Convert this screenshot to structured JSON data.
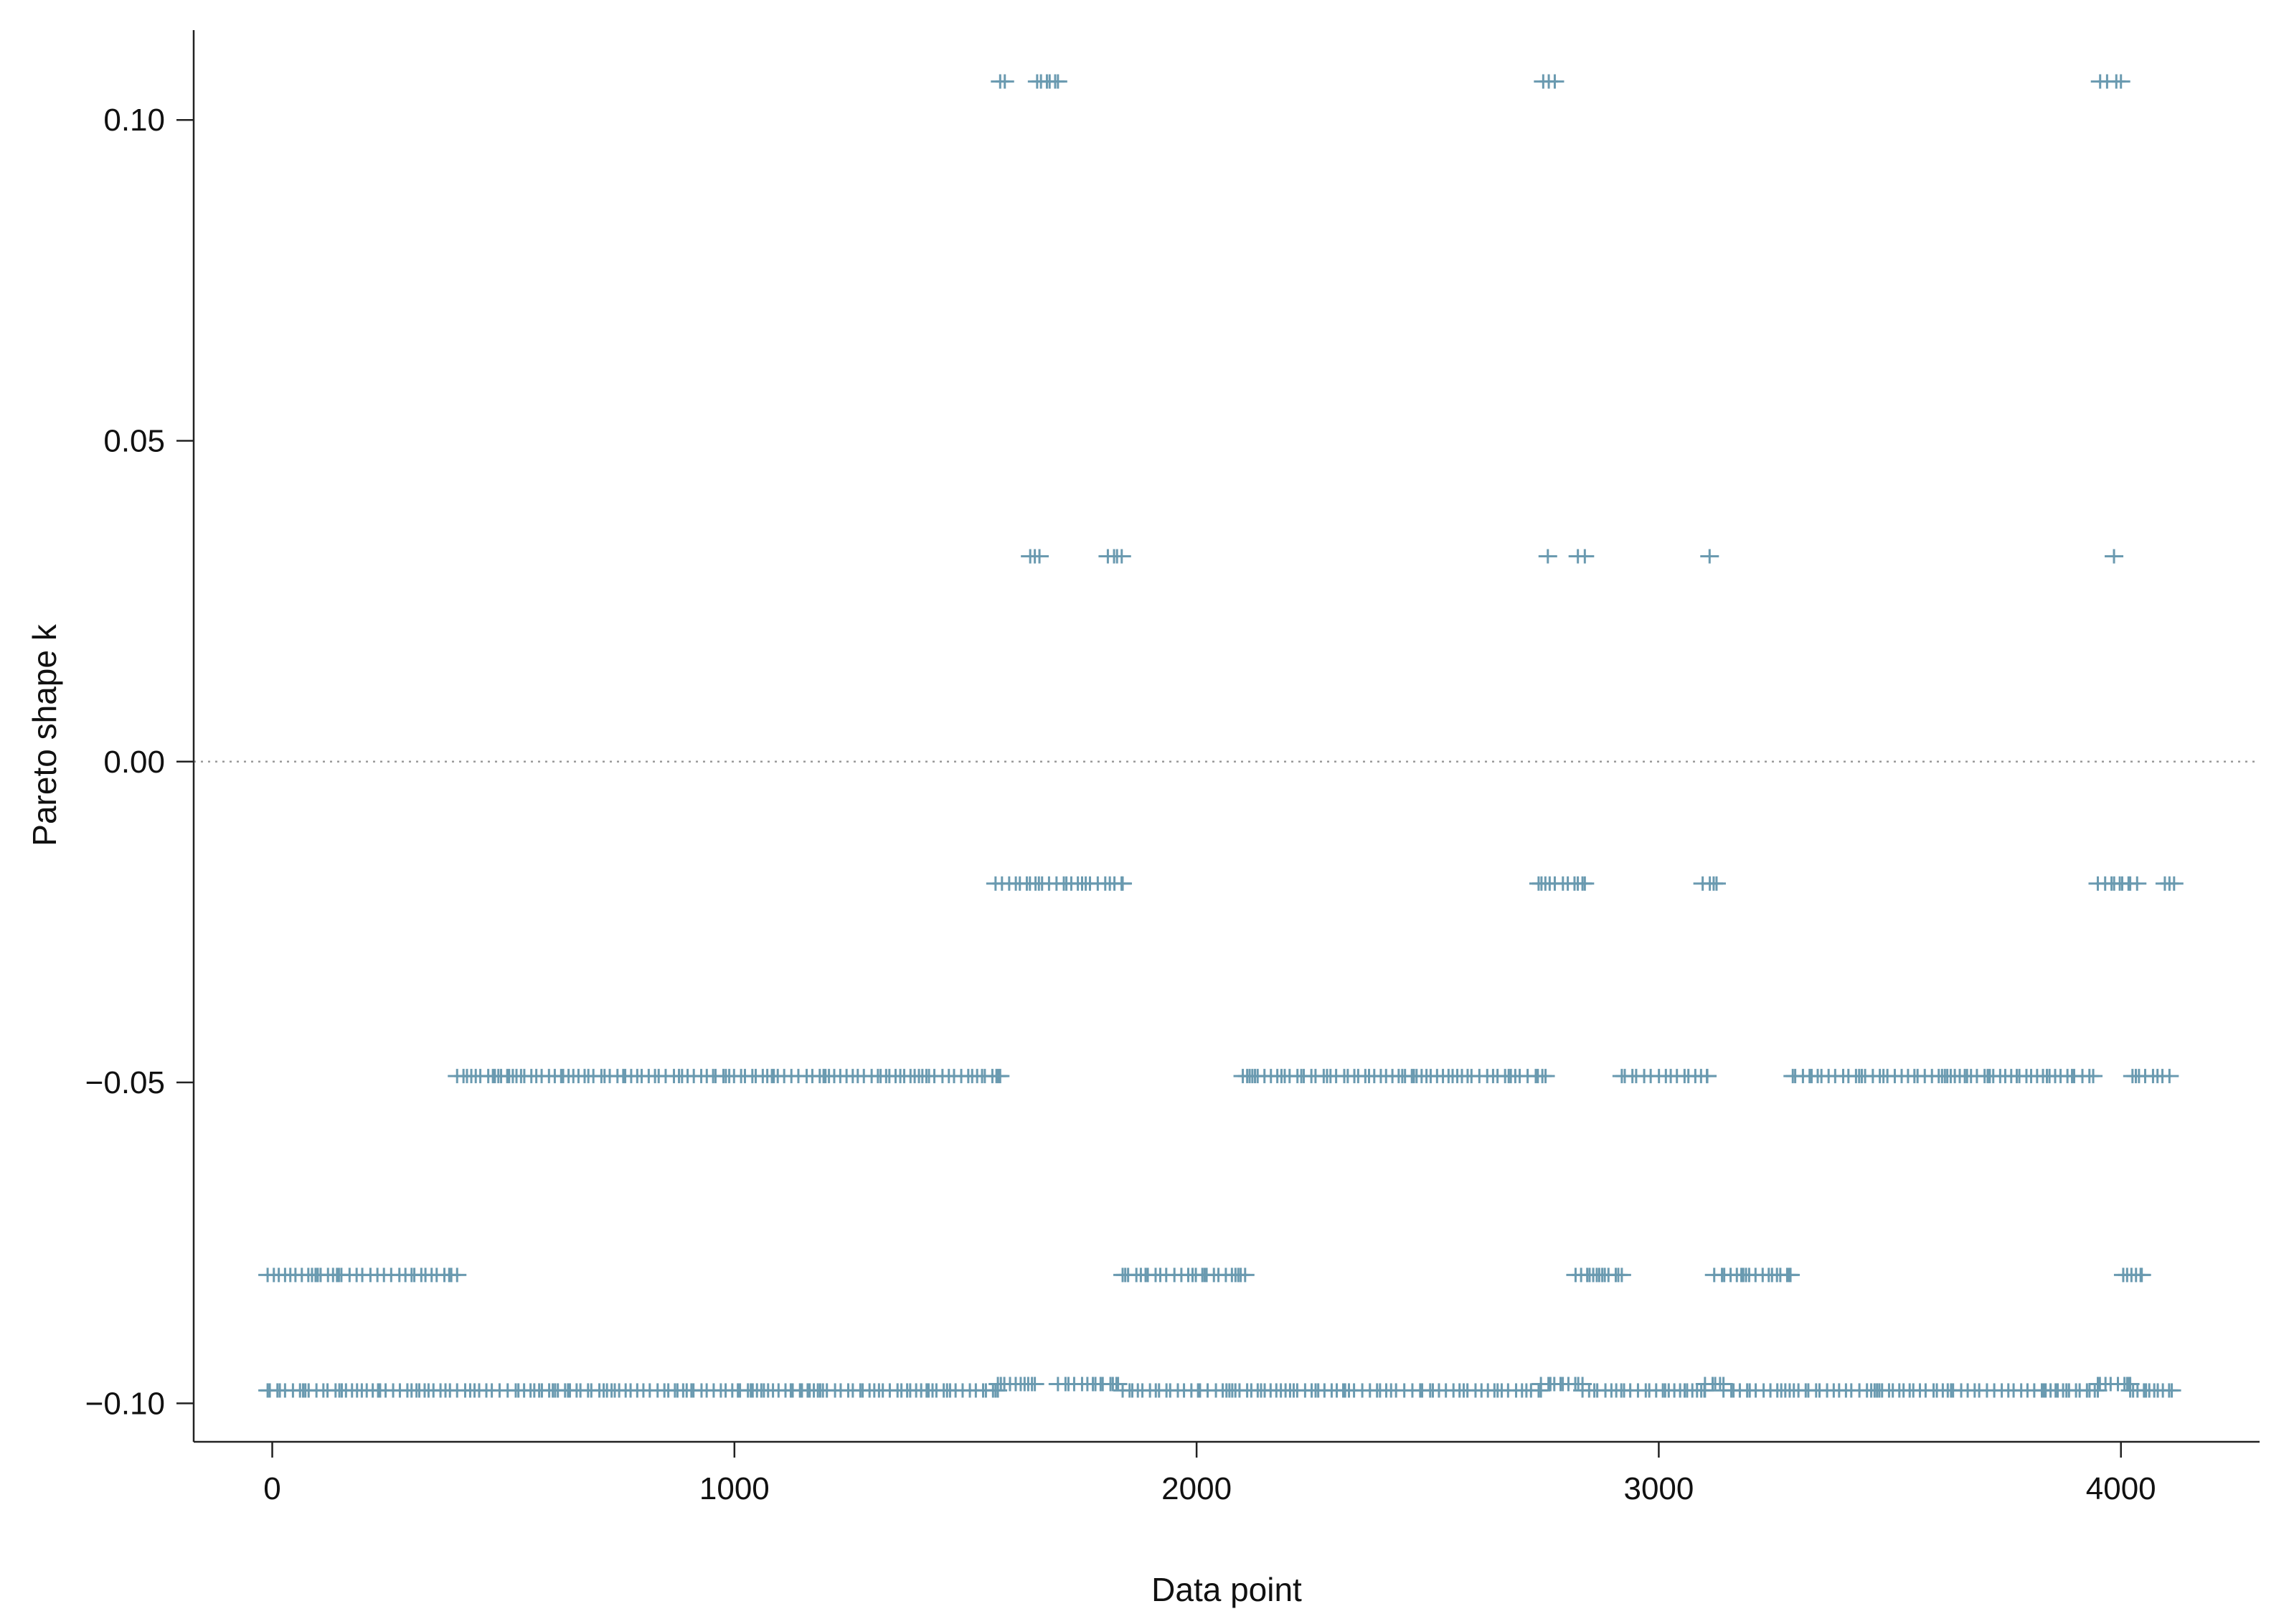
{
  "chart_data": {
    "type": "scatter",
    "title": "",
    "xlabel": "Data point",
    "ylabel": "Pareto shape k",
    "xlim": [
      -170,
      4300
    ],
    "ylim": [
      -0.106,
      0.114
    ],
    "x_ticks": [
      0,
      1000,
      2000,
      3000,
      4000
    ],
    "y_ticks": [
      0.1,
      0.05,
      0.0,
      -0.05,
      -0.1
    ],
    "x_tick_labels": [
      "0",
      "1000",
      "2000",
      "3000",
      "4000"
    ],
    "y_tick_labels": [
      "0.10",
      "0.05",
      "0.00",
      "−0.05",
      "−0.10"
    ],
    "grid": false,
    "reference_line": {
      "y": 0.0,
      "style": "dotted"
    },
    "marker": "plus",
    "color": "#6a9ab0",
    "series": [
      {
        "y": 0.106,
        "x_ranges": [
          [
            1575,
            1585
          ],
          [
            1655,
            1700
          ]
        ],
        "x_points": [
          1682,
          2750,
          2762,
          2775,
          3955,
          3970,
          3990,
          4000
        ]
      },
      {
        "y": 0.032,
        "x_ranges": [
          [
            1808,
            1838
          ]
        ],
        "x_points": [
          1640,
          1650,
          1660,
          2760,
          2825,
          2840,
          3110,
          3985
        ]
      },
      {
        "y": -0.019,
        "x_ranges": [
          [
            1565,
            1840
          ],
          [
            2740,
            2840
          ],
          [
            3095,
            3125
          ],
          [
            3950,
            4020
          ]
        ],
        "x_points": [
          4035,
          4095,
          4105,
          4115
        ]
      },
      {
        "y": -0.049,
        "x_ranges": [
          [
            400,
            1575
          ],
          [
            2100,
            2755
          ],
          [
            2920,
            3105
          ],
          [
            3290,
            3940
          ],
          [
            4025,
            4105
          ]
        ],
        "x_points": []
      },
      {
        "y": -0.08,
        "x_ranges": [
          [
            -10,
            400
          ],
          [
            1840,
            2105
          ],
          [
            2820,
            2920
          ],
          [
            3120,
            3285
          ],
          [
            4005,
            4045
          ]
        ],
        "x_points": []
      },
      {
        "y": -0.098,
        "x_ranges": [
          [
            -10,
            1570
          ],
          [
            1840,
            2745
          ],
          [
            2835,
            3100
          ],
          [
            3140,
            3950
          ],
          [
            4020,
            4110
          ]
        ],
        "x_points": []
      },
      {
        "y": -0.097,
        "x_ranges": [
          [
            1570,
            1650
          ],
          [
            1700,
            1830
          ],
          [
            2745,
            2835
          ],
          [
            3100,
            3140
          ],
          [
            3950,
            4020
          ]
        ],
        "x_points": []
      }
    ]
  }
}
